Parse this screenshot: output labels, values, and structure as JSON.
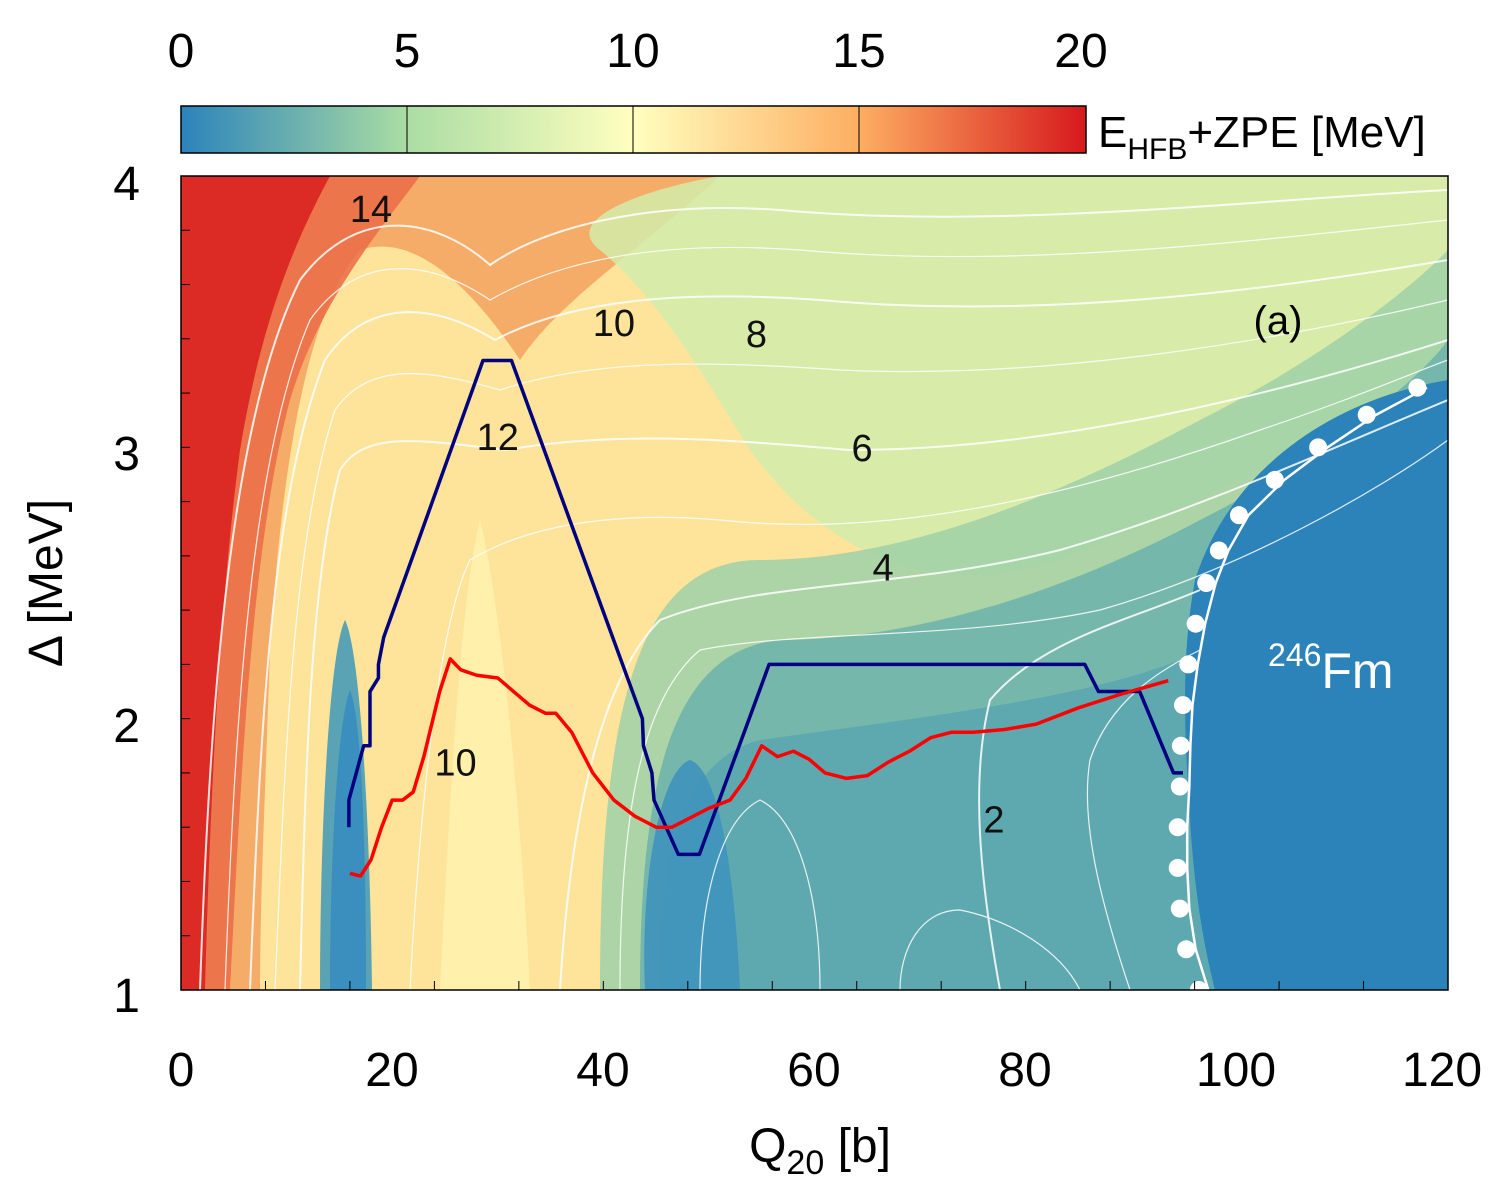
{
  "chart_data": {
    "type": "heatmap",
    "panel_label": "(a)",
    "nucleus_label": {
      "mass": "246",
      "element": "Fm"
    },
    "xlabel": {
      "main": "Q",
      "sub": "20",
      "unit": " [b]"
    },
    "ylabel": "Δ [MeV]",
    "xlim": [
      0,
      120
    ],
    "ylim": [
      1,
      4
    ],
    "x_ticks": [
      "0",
      "20",
      "40",
      "60",
      "80",
      "100",
      "120"
    ],
    "y_ticks": [
      "1",
      "2",
      "3",
      "4"
    ],
    "colorbar": {
      "label": {
        "main": "E",
        "sub": "HFB",
        "rest": "+ZPE [MeV]"
      },
      "range": [
        0,
        20
      ],
      "ticks": [
        "0",
        "5",
        "10",
        "15",
        "20"
      ],
      "colors": [
        "#2b83ba",
        "#abdda4",
        "#ffffbf",
        "#fdae61",
        "#d7191c"
      ]
    },
    "contour_labels": [
      {
        "text": "14",
        "x": 18.0,
        "y": 3.83
      },
      {
        "text": "12",
        "x": 30.0,
        "y": 2.99
      },
      {
        "text": "10",
        "x": 41.0,
        "y": 3.41
      },
      {
        "text": "8",
        "x": 54.5,
        "y": 3.37
      },
      {
        "text": "6",
        "x": 64.5,
        "y": 2.95
      },
      {
        "text": "4",
        "x": 66.5,
        "y": 2.51
      },
      {
        "text": "2",
        "x": 77.0,
        "y": 1.58
      },
      {
        "text": "10",
        "x": 26.0,
        "y": 1.79
      }
    ],
    "series": [
      {
        "color": "#000080",
        "x": [
          15.9,
          15.9,
          17.3,
          17.9,
          17.9,
          18.7,
          18.7,
          19.2,
          28.6,
          31.3,
          43.7,
          43.8,
          44.6,
          44.8,
          47.1,
          49.1,
          55.7,
          85.6,
          86.9,
          90.8,
          94.0,
          94.9
        ],
        "y": [
          1.6,
          1.7,
          1.9,
          1.9,
          2.1,
          2.15,
          2.2,
          2.3,
          3.32,
          3.32,
          2.0,
          1.9,
          1.8,
          1.7,
          1.5,
          1.5,
          2.2,
          2.2,
          2.1,
          2.1,
          1.8,
          1.8
        ]
      },
      {
        "color": "#ff0000",
        "x": [
          16.0,
          17.0,
          18.0,
          19.0,
          20.0,
          21.0,
          22.0,
          23.0,
          24.5,
          25.5,
          26.5,
          28.0,
          30.0,
          31.5,
          33.0,
          34.5,
          35.5,
          37.0,
          39.0,
          41.0,
          43.0,
          45.0,
          46.5,
          48.0,
          50.0,
          52.0,
          53.5,
          55.0,
          56.5,
          58.0,
          59.5,
          61.0,
          63.0,
          65.0,
          67.0,
          69.0,
          71.0,
          73.0,
          75.0,
          78.0,
          81.0,
          85.0,
          89.0,
          93.5
        ],
        "y": [
          1.43,
          1.42,
          1.48,
          1.6,
          1.7,
          1.7,
          1.73,
          1.86,
          2.1,
          2.22,
          2.18,
          2.16,
          2.15,
          2.1,
          2.05,
          2.02,
          2.02,
          1.95,
          1.8,
          1.7,
          1.64,
          1.6,
          1.6,
          1.63,
          1.67,
          1.7,
          1.78,
          1.9,
          1.86,
          1.88,
          1.85,
          1.8,
          1.78,
          1.79,
          1.84,
          1.88,
          1.93,
          1.95,
          1.95,
          1.96,
          1.98,
          2.04,
          2.09,
          2.14
        ]
      },
      {
        "color": "#ffffff",
        "x": [
          97.3,
          96.1,
          95.5,
          95.3,
          95.3,
          95.5,
          95.6,
          95.8,
          96.3,
          97.0,
          98.0,
          99.2,
          101.1,
          104.5,
          108.6,
          113.2,
          118.0
        ],
        "y": [
          1.0,
          1.15,
          1.3,
          1.45,
          1.6,
          1.75,
          1.9,
          2.05,
          2.2,
          2.35,
          2.5,
          2.62,
          2.75,
          2.88,
          3.0,
          3.12,
          3.22
        ]
      }
    ]
  }
}
